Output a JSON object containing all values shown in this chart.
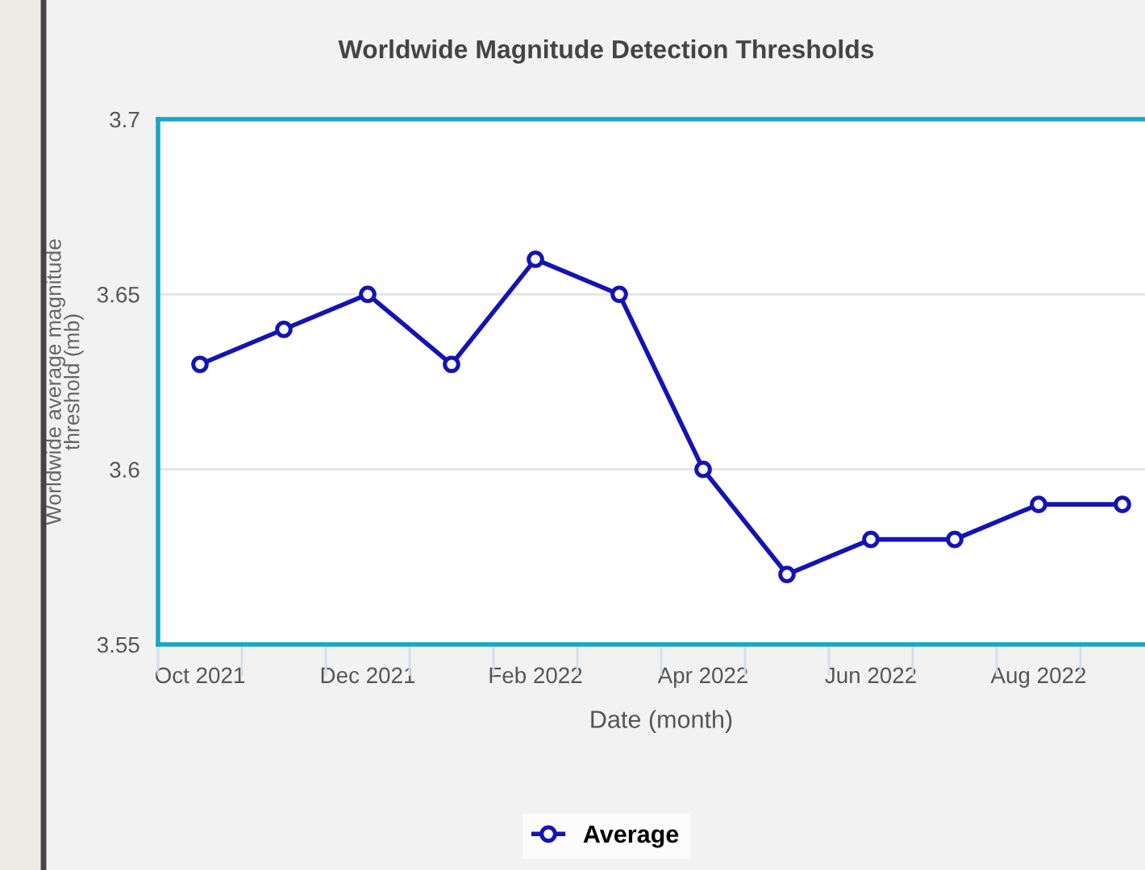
{
  "chart_data": {
    "type": "line",
    "title": "Worldwide Magnitude Detection Thresholds",
    "xlabel": "Date (month)",
    "ylabel": "Worldwide average magnitude\nthreshold (mb)",
    "categories": [
      "Oct 2021",
      null,
      "Dec 2021",
      null,
      "Feb 2022",
      null,
      "Apr 2022",
      null,
      "Jun 2022",
      null,
      "Aug 2022",
      null
    ],
    "series": [
      {
        "name": "Average",
        "color": "#1414b4",
        "values": [
          3.63,
          3.64,
          3.65,
          3.63,
          3.66,
          3.65,
          3.6,
          3.57,
          3.58,
          3.58,
          3.59,
          3.59
        ]
      }
    ],
    "ylim": [
      3.55,
      3.7
    ],
    "yticks": [
      3.55,
      3.6,
      3.65,
      3.7
    ],
    "grid": "y",
    "legend": "bottom",
    "marker": "circle",
    "line_style": "solid"
  }
}
